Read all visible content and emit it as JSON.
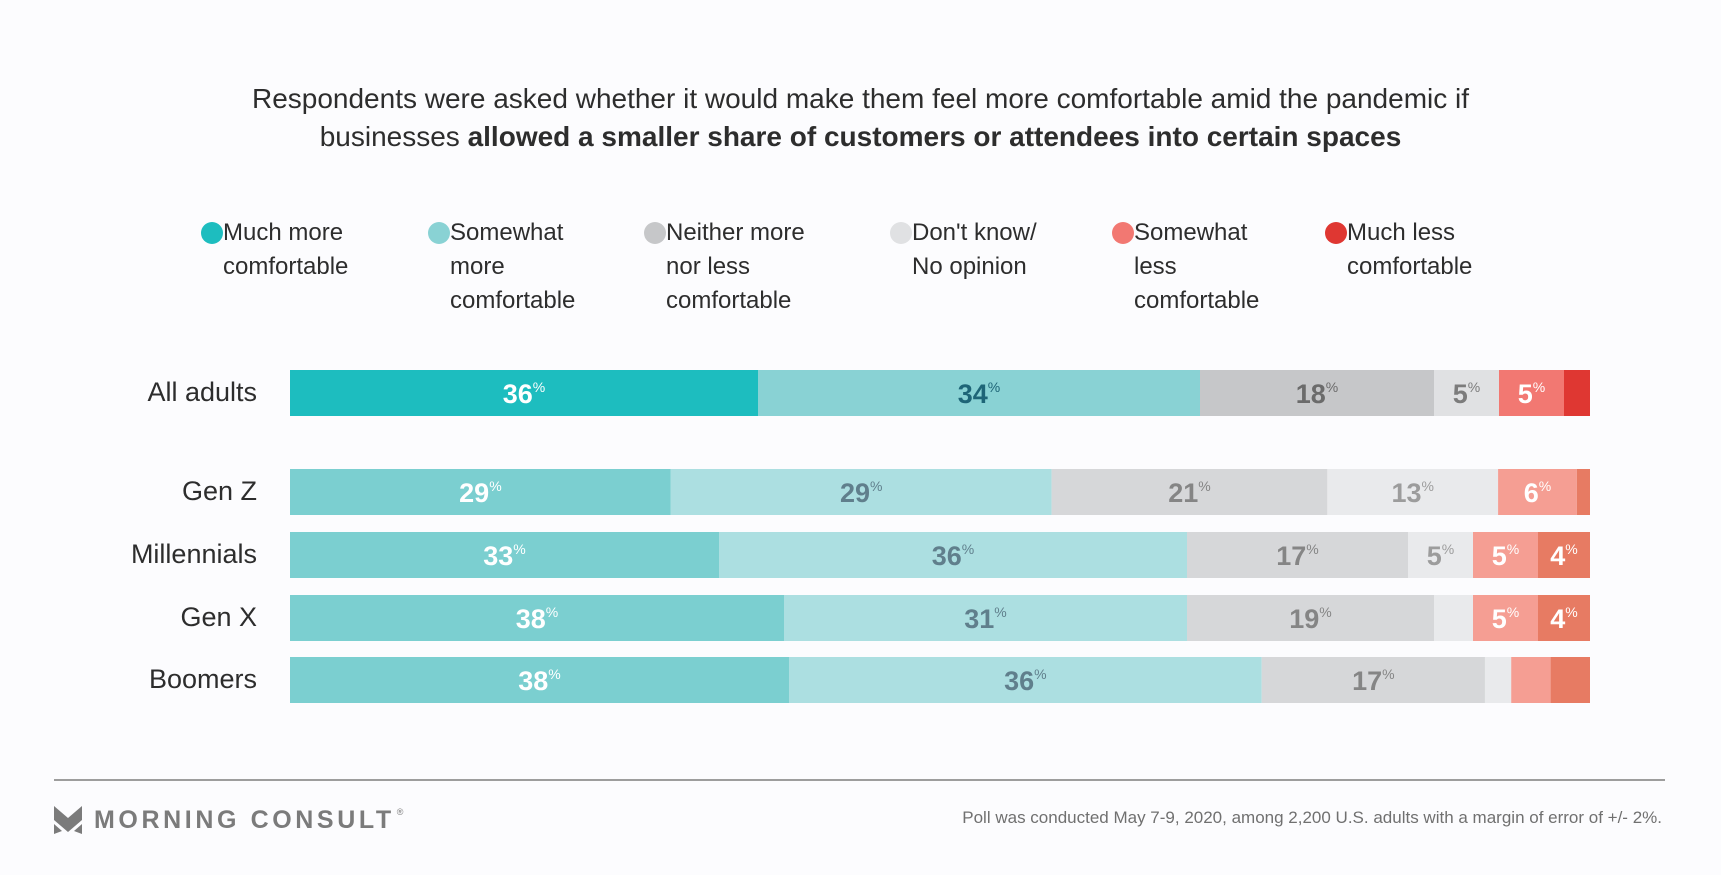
{
  "title": {
    "line1": "Respondents were asked whether it would make them feel more comfortable amid the pandemic if",
    "line2_prefix": "businesses ",
    "line2_bold": "allowed a smaller share of customers or attendees into certain spaces"
  },
  "footer": {
    "brand": "MORNING CONSULT",
    "registered_mark": "®",
    "footnote": "Poll was conducted May 7-9, 2020, among 2,200 U.S. adults with a margin of error of +/- 2%."
  },
  "chart_data": {
    "type": "bar",
    "orientation": "horizontal-stacked-100",
    "title": "Respondents were asked whether it would make them feel more comfortable amid the pandemic if businesses allowed a smaller share of customers or attendees into certain spaces",
    "xlabel": "",
    "ylabel": "",
    "xlim": [
      0,
      100
    ],
    "grid": false,
    "legend_position": "top",
    "value_suffix": "%",
    "categories": [
      "All adults",
      "Gen Z",
      "Millennials",
      "Gen X",
      "Boomers"
    ],
    "series": [
      {
        "name": "Much more comfortable",
        "legend_label": "Much more\ncomfortable",
        "values": [
          36,
          29,
          33,
          38,
          38
        ],
        "labels_shown": [
          true,
          true,
          true,
          true,
          true
        ],
        "colors": [
          "#1dbdbf",
          "#7bcfd0",
          "#7bcfd0",
          "#7bcfd0",
          "#7bcfd0"
        ],
        "legend_color": "#1dbdbf",
        "label_colors": [
          "#ffffff",
          "#ffffff",
          "#ffffff",
          "#ffffff",
          "#ffffff"
        ]
      },
      {
        "name": "Somewhat more comfortable",
        "legend_label": "Somewhat\nmore\ncomfortable",
        "values": [
          34,
          29,
          36,
          31,
          36
        ],
        "labels_shown": [
          true,
          true,
          true,
          true,
          true
        ],
        "colors": [
          "#89d2d4",
          "#acdfe1",
          "#acdfe1",
          "#acdfe1",
          "#acdfe1"
        ],
        "legend_color": "#89d2d4",
        "label_colors": [
          "#1e6577",
          "#607f8c",
          "#607f8c",
          "#607f8c",
          "#607f8c"
        ]
      },
      {
        "name": "Neither more nor less comfortable",
        "legend_label": "Neither more\nnor less\ncomfortable",
        "values": [
          18,
          21,
          17,
          19,
          17
        ],
        "labels_shown": [
          true,
          true,
          true,
          true,
          true
        ],
        "colors": [
          "#c6c7c9",
          "#d6d7d9",
          "#d6d7d9",
          "#d6d7d9",
          "#d6d7d9"
        ],
        "legend_color": "#c6c7c9",
        "label_colors": [
          "#6b6b6b",
          "#858585",
          "#858585",
          "#858585",
          "#858585"
        ]
      },
      {
        "name": "Don't know/No opinion",
        "legend_label": "Don't know/\nNo opinion",
        "values": [
          5,
          13,
          5,
          3,
          2
        ],
        "labels_shown": [
          true,
          true,
          true,
          false,
          false
        ],
        "colors": [
          "#e0e1e3",
          "#e9eaec",
          "#e9eaec",
          "#e9eaec",
          "#e9eaec"
        ],
        "legend_color": "#e0e1e3",
        "label_colors": [
          "#7c7c7c",
          "#9c9c9c",
          "#9c9c9c",
          "#9c9c9c",
          "#9c9c9c"
        ]
      },
      {
        "name": "Somewhat less comfortable",
        "legend_label": "Somewhat\nless\ncomfortable",
        "values": [
          5,
          6,
          5,
          5,
          3
        ],
        "labels_shown": [
          true,
          true,
          true,
          true,
          false
        ],
        "colors": [
          "#f27872",
          "#f59e93",
          "#f59e93",
          "#f59e93",
          "#f59e93"
        ],
        "legend_color": "#f27872",
        "label_colors": [
          "#ffffff",
          "#ffffff",
          "#ffffff",
          "#ffffff",
          "#ffffff"
        ]
      },
      {
        "name": "Much less comfortable",
        "legend_label": "Much less\ncomfortable",
        "values": [
          2,
          1,
          4,
          4,
          3
        ],
        "labels_shown": [
          false,
          false,
          true,
          true,
          false
        ],
        "colors": [
          "#df3732",
          "#e77b63",
          "#e77b63",
          "#e77b63",
          "#e77b63"
        ],
        "legend_color": "#df3732",
        "label_colors": [
          "#ffffff",
          "#ffffff",
          "#ffffff",
          "#ffffff",
          "#ffffff"
        ]
      }
    ]
  }
}
